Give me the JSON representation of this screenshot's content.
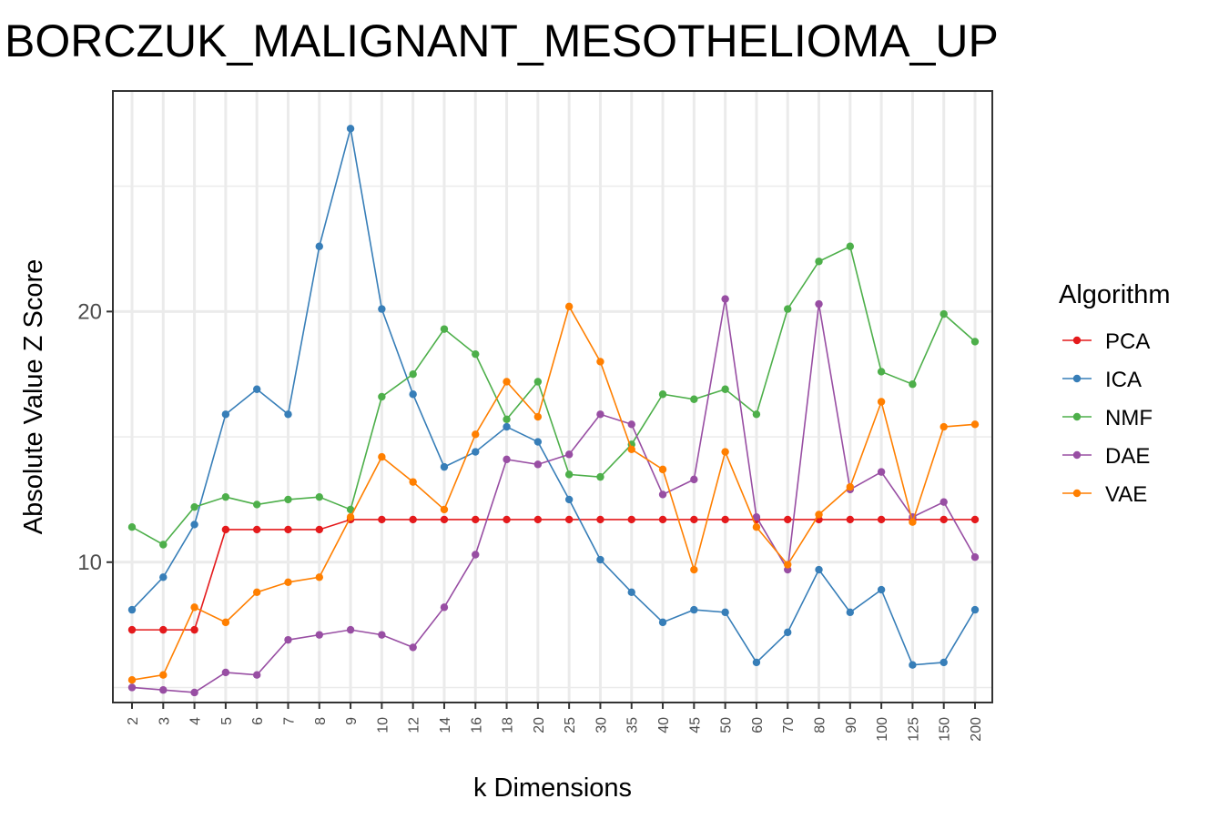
{
  "chart_data": {
    "type": "line",
    "title": "BORCZUK_MALIGNANT_MESOTHELIOMA_UP",
    "xlabel": "k Dimensions",
    "ylabel": "Absolute Value Z Score",
    "x": [
      "2",
      "3",
      "4",
      "5",
      "6",
      "7",
      "8",
      "9",
      "10",
      "12",
      "14",
      "16",
      "18",
      "20",
      "25",
      "30",
      "35",
      "40",
      "45",
      "50",
      "60",
      "70",
      "80",
      "90",
      "100",
      "125",
      "150",
      "200"
    ],
    "ylim": [
      4.4,
      28.8
    ],
    "yticks": [
      10,
      20
    ],
    "grid": true,
    "legend_title": "Algorithm",
    "legend_position": "right",
    "series": [
      {
        "name": "PCA",
        "color": "#e41a1c",
        "values": [
          7.3,
          7.3,
          7.3,
          11.3,
          11.3,
          11.3,
          11.3,
          11.7,
          11.7,
          11.7,
          11.7,
          11.7,
          11.7,
          11.7,
          11.7,
          11.7,
          11.7,
          11.7,
          11.7,
          11.7,
          11.7,
          11.7,
          11.7,
          11.7,
          11.7,
          11.7,
          11.7,
          11.7
        ]
      },
      {
        "name": "ICA",
        "color": "#377eb8",
        "values": [
          8.1,
          9.4,
          11.5,
          15.9,
          16.9,
          15.9,
          22.6,
          27.3,
          20.1,
          16.7,
          13.8,
          14.4,
          15.4,
          14.8,
          12.5,
          10.1,
          8.8,
          7.6,
          8.1,
          8.0,
          6.0,
          7.2,
          9.7,
          8.0,
          8.9,
          5.9,
          6.0,
          8.1
        ]
      },
      {
        "name": "NMF",
        "color": "#4daf4a",
        "values": [
          11.4,
          10.7,
          12.2,
          12.6,
          12.3,
          12.5,
          12.6,
          12.1,
          16.6,
          17.5,
          19.3,
          18.3,
          15.7,
          17.2,
          13.5,
          13.4,
          14.7,
          16.7,
          16.5,
          16.9,
          15.9,
          20.1,
          22.0,
          22.6,
          17.6,
          17.1,
          19.9,
          18.8
        ]
      },
      {
        "name": "DAE",
        "color": "#984ea3",
        "values": [
          5.0,
          4.9,
          4.8,
          5.6,
          5.5,
          6.9,
          7.1,
          7.3,
          7.1,
          6.6,
          8.2,
          10.3,
          14.1,
          13.9,
          14.3,
          15.9,
          15.5,
          12.7,
          13.3,
          20.5,
          11.8,
          9.7,
          20.3,
          12.9,
          13.6,
          11.8,
          12.4,
          10.2
        ]
      },
      {
        "name": "VAE",
        "color": "#ff7f00",
        "values": [
          5.3,
          5.5,
          8.2,
          7.6,
          8.8,
          9.2,
          9.4,
          11.8,
          14.2,
          13.2,
          12.1,
          15.1,
          17.2,
          15.8,
          20.2,
          18.0,
          14.5,
          13.7,
          9.7,
          14.4,
          11.4,
          9.9,
          11.9,
          13.0,
          16.4,
          11.6,
          15.4,
          15.5
        ]
      }
    ]
  }
}
